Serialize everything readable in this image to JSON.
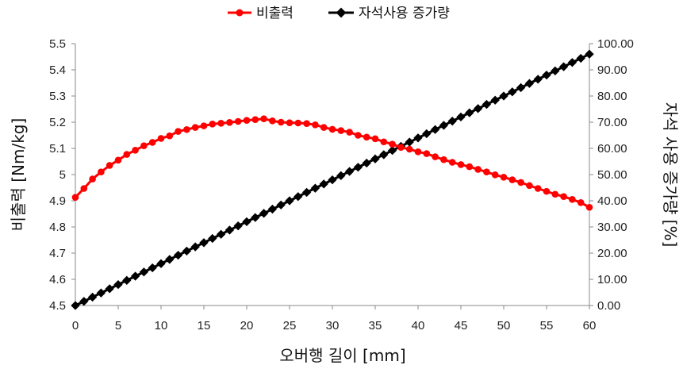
{
  "chart_data": {
    "type": "line",
    "x": [
      0,
      1,
      2,
      3,
      4,
      5,
      6,
      7,
      8,
      9,
      10,
      11,
      12,
      13,
      14,
      15,
      16,
      17,
      18,
      19,
      20,
      21,
      22,
      23,
      24,
      25,
      26,
      27,
      28,
      29,
      30,
      31,
      32,
      33,
      34,
      35,
      36,
      37,
      38,
      39,
      40,
      41,
      42,
      43,
      44,
      45,
      46,
      47,
      48,
      49,
      50,
      51,
      52,
      53,
      54,
      55,
      56,
      57,
      58,
      59,
      60
    ],
    "series": [
      {
        "name": "비출력",
        "axis": "left",
        "color": "#ff0000",
        "marker": "circle",
        "values": [
          4.913,
          4.947,
          4.983,
          5.01,
          5.035,
          5.055,
          5.077,
          5.093,
          5.11,
          5.123,
          5.138,
          5.148,
          5.165,
          5.172,
          5.18,
          5.186,
          5.193,
          5.196,
          5.199,
          5.203,
          5.207,
          5.21,
          5.213,
          5.205,
          5.2,
          5.198,
          5.197,
          5.195,
          5.19,
          5.18,
          5.173,
          5.168,
          5.162,
          5.15,
          5.143,
          5.137,
          5.125,
          5.116,
          5.104,
          5.097,
          5.087,
          5.08,
          5.068,
          5.057,
          5.047,
          5.038,
          5.03,
          5.02,
          5.01,
          4.999,
          4.99,
          4.98,
          4.97,
          4.958,
          4.947,
          4.936,
          4.925,
          4.916,
          4.905,
          4.893,
          4.875
        ]
      },
      {
        "name": "자석사용 증가량",
        "axis": "right",
        "color": "#000000",
        "marker": "diamond",
        "values": [
          0,
          1.6,
          3.2,
          4.8,
          6.4,
          8.0,
          9.6,
          11.2,
          12.8,
          14.4,
          16.0,
          17.6,
          19.2,
          20.8,
          22.4,
          24.0,
          25.6,
          27.2,
          28.8,
          30.4,
          32.0,
          33.6,
          35.2,
          36.8,
          38.4,
          40.0,
          41.6,
          43.2,
          44.8,
          46.4,
          48.0,
          49.6,
          51.2,
          52.8,
          54.4,
          56.0,
          57.6,
          59.2,
          60.8,
          62.4,
          64.0,
          65.6,
          67.2,
          68.8,
          70.4,
          72.0,
          73.6,
          75.2,
          76.8,
          78.4,
          80.0,
          81.6,
          83.2,
          84.8,
          86.4,
          88.0,
          89.6,
          91.2,
          92.8,
          94.4,
          96.0
        ]
      }
    ],
    "xlabel": "오버행 길이 [mm]",
    "ylabel_left": "비출력 [Nm/kg]",
    "ylabel_right": "자석 사용 증가량 [%]",
    "xlim": [
      0,
      60
    ],
    "ylim_left": [
      4.5,
      5.5
    ],
    "ylim_right": [
      0,
      100
    ],
    "x_ticks": [
      "0",
      "5",
      "10",
      "15",
      "20",
      "25",
      "30",
      "35",
      "40",
      "45",
      "50",
      "55",
      "60"
    ],
    "y_left_ticks": [
      "4.5",
      "4.6",
      "4.7",
      "4.8",
      "4.9",
      "5",
      "5.1",
      "5.2",
      "5.3",
      "5.4",
      "5.5"
    ],
    "y_right_ticks": [
      "0.00",
      "10.00",
      "20.00",
      "30.00",
      "40.00",
      "50.00",
      "60.00",
      "70.00",
      "80.00",
      "90.00",
      "100.00"
    ],
    "grid": false,
    "legend_position": "top-center"
  }
}
